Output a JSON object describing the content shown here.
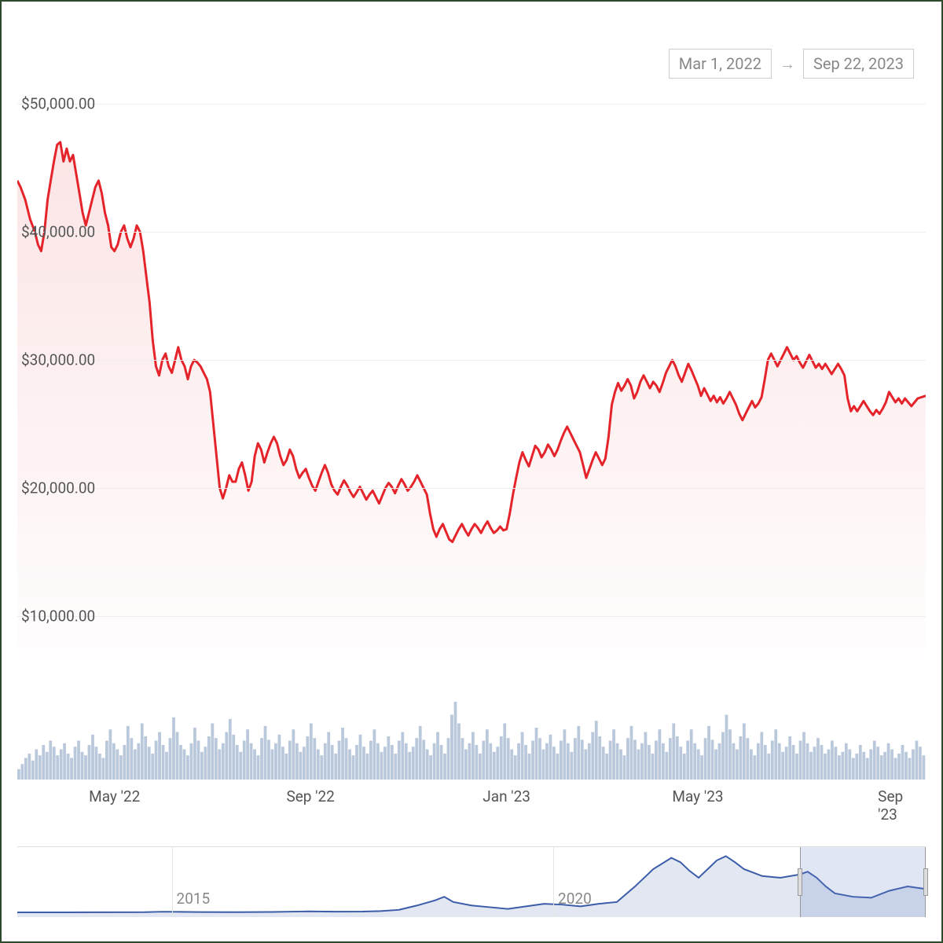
{
  "date_range": {
    "start": "Mar 1, 2022",
    "end": "Sep 22, 2023"
  },
  "main_chart": {
    "type": "area-line",
    "line_color": "#e4242a",
    "line_width": 3,
    "fill_color_top": "rgba(228,36,42,0.12)",
    "fill_color_bottom": "rgba(228,36,42,0.0)",
    "background_color": "#ffffff",
    "grid_color": "#eeeeee",
    "ylim": [
      4000,
      50000
    ],
    "y_ticks": [
      10000,
      20000,
      30000,
      40000,
      50000
    ],
    "y_tick_labels": [
      "$10,000.00",
      "$20,000.00",
      "$30,000.00",
      "$40,000.00",
      "$50,000.00"
    ],
    "label_fontsize": 19,
    "label_color": "#555555",
    "x_domain": [
      0,
      570
    ],
    "x_ticks": [
      61,
      184,
      307,
      427,
      550
    ],
    "x_tick_labels": [
      "May '22",
      "Sep '22",
      "Jan '23",
      "May '23",
      "Sep '23"
    ],
    "series": [
      [
        0,
        44000
      ],
      [
        2,
        43500
      ],
      [
        5,
        42500
      ],
      [
        8,
        41000
      ],
      [
        11,
        40000
      ],
      [
        13,
        39000
      ],
      [
        15,
        38500
      ],
      [
        17,
        40000
      ],
      [
        19,
        42500
      ],
      [
        21,
        44000
      ],
      [
        23,
        45500
      ],
      [
        25,
        46800
      ],
      [
        27,
        47000
      ],
      [
        29,
        45500
      ],
      [
        31,
        46500
      ],
      [
        33,
        45500
      ],
      [
        35,
        46000
      ],
      [
        37,
        44500
      ],
      [
        39,
        43000
      ],
      [
        41,
        41500
      ],
      [
        43,
        40500
      ],
      [
        45,
        41500
      ],
      [
        47,
        42500
      ],
      [
        49,
        43500
      ],
      [
        51,
        44000
      ],
      [
        53,
        43000
      ],
      [
        55,
        41500
      ],
      [
        57,
        40500
      ],
      [
        59,
        38800
      ],
      [
        61,
        38500
      ],
      [
        63,
        39000
      ],
      [
        65,
        40000
      ],
      [
        67,
        40500
      ],
      [
        69,
        39500
      ],
      [
        71,
        38800
      ],
      [
        73,
        39500
      ],
      [
        75,
        40500
      ],
      [
        77,
        40000
      ],
      [
        79,
        38500
      ],
      [
        81,
        36500
      ],
      [
        83,
        34500
      ],
      [
        85,
        31500
      ],
      [
        87,
        29500
      ],
      [
        89,
        28800
      ],
      [
        91,
        30000
      ],
      [
        93,
        30500
      ],
      [
        95,
        29500
      ],
      [
        97,
        29000
      ],
      [
        99,
        30000
      ],
      [
        101,
        31000
      ],
      [
        103,
        30000
      ],
      [
        105,
        29500
      ],
      [
        107,
        28500
      ],
      [
        109,
        29500
      ],
      [
        111,
        30000
      ],
      [
        113,
        29800
      ],
      [
        115,
        29500
      ],
      [
        117,
        29000
      ],
      [
        119,
        28500
      ],
      [
        121,
        27500
      ],
      [
        123,
        25000
      ],
      [
        125,
        22500
      ],
      [
        127,
        20000
      ],
      [
        129,
        19200
      ],
      [
        131,
        20000
      ],
      [
        133,
        21000
      ],
      [
        135,
        20500
      ],
      [
        137,
        20500
      ],
      [
        139,
        21500
      ],
      [
        141,
        22000
      ],
      [
        143,
        21000
      ],
      [
        145,
        19800
      ],
      [
        147,
        20500
      ],
      [
        149,
        22500
      ],
      [
        151,
        23500
      ],
      [
        153,
        23000
      ],
      [
        155,
        22000
      ],
      [
        157,
        22800
      ],
      [
        159,
        23500
      ],
      [
        161,
        24000
      ],
      [
        163,
        23500
      ],
      [
        165,
        22500
      ],
      [
        167,
        21800
      ],
      [
        169,
        22200
      ],
      [
        171,
        23000
      ],
      [
        173,
        22500
      ],
      [
        175,
        21500
      ],
      [
        177,
        20800
      ],
      [
        179,
        21200
      ],
      [
        181,
        21500
      ],
      [
        183,
        20800
      ],
      [
        185,
        20200
      ],
      [
        187,
        19800
      ],
      [
        189,
        20500
      ],
      [
        191,
        21200
      ],
      [
        193,
        21800
      ],
      [
        195,
        21200
      ],
      [
        197,
        20300
      ],
      [
        199,
        19800
      ],
      [
        201,
        19500
      ],
      [
        203,
        20100
      ],
      [
        205,
        20600
      ],
      [
        207,
        20200
      ],
      [
        209,
        19700
      ],
      [
        211,
        19300
      ],
      [
        213,
        19700
      ],
      [
        215,
        20100
      ],
      [
        217,
        19600
      ],
      [
        219,
        19100
      ],
      [
        221,
        19500
      ],
      [
        223,
        19800
      ],
      [
        225,
        19300
      ],
      [
        227,
        18800
      ],
      [
        229,
        19400
      ],
      [
        231,
        20000
      ],
      [
        233,
        20400
      ],
      [
        235,
        20100
      ],
      [
        237,
        19600
      ],
      [
        239,
        20200
      ],
      [
        241,
        20700
      ],
      [
        243,
        20300
      ],
      [
        245,
        19800
      ],
      [
        247,
        20100
      ],
      [
        249,
        20500
      ],
      [
        251,
        21000
      ],
      [
        253,
        20500
      ],
      [
        255,
        20000
      ],
      [
        257,
        19500
      ],
      [
        259,
        18000
      ],
      [
        261,
        16800
      ],
      [
        263,
        16200
      ],
      [
        265,
        16800
      ],
      [
        267,
        17200
      ],
      [
        269,
        16600
      ],
      [
        271,
        16000
      ],
      [
        273,
        15800
      ],
      [
        275,
        16300
      ],
      [
        277,
        16800
      ],
      [
        279,
        17200
      ],
      [
        281,
        16700
      ],
      [
        283,
        16300
      ],
      [
        285,
        16800
      ],
      [
        287,
        17200
      ],
      [
        289,
        16900
      ],
      [
        291,
        16500
      ],
      [
        293,
        17000
      ],
      [
        295,
        17400
      ],
      [
        297,
        16900
      ],
      [
        299,
        16500
      ],
      [
        301,
        16700
      ],
      [
        303,
        17000
      ],
      [
        305,
        16700
      ],
      [
        307,
        16800
      ],
      [
        309,
        18000
      ],
      [
        311,
        19500
      ],
      [
        313,
        20800
      ],
      [
        315,
        22000
      ],
      [
        317,
        22800
      ],
      [
        319,
        22200
      ],
      [
        321,
        21700
      ],
      [
        323,
        22500
      ],
      [
        325,
        23300
      ],
      [
        327,
        23000
      ],
      [
        329,
        22400
      ],
      [
        331,
        22800
      ],
      [
        333,
        23400
      ],
      [
        335,
        23000
      ],
      [
        337,
        22500
      ],
      [
        339,
        23000
      ],
      [
        341,
        23700
      ],
      [
        343,
        24300
      ],
      [
        345,
        24800
      ],
      [
        347,
        24300
      ],
      [
        349,
        23800
      ],
      [
        351,
        23300
      ],
      [
        353,
        22800
      ],
      [
        355,
        21800
      ],
      [
        357,
        20800
      ],
      [
        359,
        21500
      ],
      [
        361,
        22200
      ],
      [
        363,
        22800
      ],
      [
        365,
        22300
      ],
      [
        367,
        21800
      ],
      [
        369,
        22300
      ],
      [
        371,
        24000
      ],
      [
        373,
        26500
      ],
      [
        375,
        27500
      ],
      [
        377,
        28200
      ],
      [
        379,
        27600
      ],
      [
        381,
        28000
      ],
      [
        383,
        28500
      ],
      [
        385,
        28000
      ],
      [
        387,
        27000
      ],
      [
        389,
        27500
      ],
      [
        391,
        28300
      ],
      [
        393,
        28800
      ],
      [
        395,
        28300
      ],
      [
        397,
        27800
      ],
      [
        399,
        28300
      ],
      [
        401,
        28000
      ],
      [
        403,
        27500
      ],
      [
        405,
        28200
      ],
      [
        407,
        29000
      ],
      [
        409,
        29500
      ],
      [
        411,
        30000
      ],
      [
        413,
        29500
      ],
      [
        415,
        28800
      ],
      [
        417,
        28300
      ],
      [
        419,
        29000
      ],
      [
        421,
        29700
      ],
      [
        423,
        29200
      ],
      [
        425,
        28600
      ],
      [
        427,
        28000
      ],
      [
        429,
        27200
      ],
      [
        431,
        27800
      ],
      [
        433,
        27300
      ],
      [
        435,
        26800
      ],
      [
        437,
        27200
      ],
      [
        439,
        26700
      ],
      [
        441,
        27100
      ],
      [
        443,
        26600
      ],
      [
        445,
        27000
      ],
      [
        447,
        27500
      ],
      [
        449,
        27000
      ],
      [
        451,
        26500
      ],
      [
        453,
        25800
      ],
      [
        455,
        25300
      ],
      [
        457,
        25800
      ],
      [
        459,
        26300
      ],
      [
        461,
        26800
      ],
      [
        463,
        26300
      ],
      [
        465,
        26600
      ],
      [
        467,
        27100
      ],
      [
        469,
        28500
      ],
      [
        471,
        30000
      ],
      [
        473,
        30500
      ],
      [
        475,
        30000
      ],
      [
        477,
        29500
      ],
      [
        479,
        30000
      ],
      [
        481,
        30500
      ],
      [
        483,
        31000
      ],
      [
        485,
        30500
      ],
      [
        487,
        30000
      ],
      [
        489,
        30300
      ],
      [
        491,
        29800
      ],
      [
        493,
        29400
      ],
      [
        495,
        29900
      ],
      [
        497,
        30400
      ],
      [
        499,
        29900
      ],
      [
        501,
        29400
      ],
      [
        503,
        29700
      ],
      [
        505,
        29300
      ],
      [
        507,
        29700
      ],
      [
        509,
        29300
      ],
      [
        511,
        28900
      ],
      [
        513,
        29300
      ],
      [
        515,
        29700
      ],
      [
        517,
        29300
      ],
      [
        519,
        28800
      ],
      [
        521,
        27000
      ],
      [
        523,
        26000
      ],
      [
        525,
        26400
      ],
      [
        527,
        26000
      ],
      [
        529,
        26400
      ],
      [
        531,
        26800
      ],
      [
        533,
        26400
      ],
      [
        535,
        26000
      ],
      [
        537,
        25700
      ],
      [
        539,
        26100
      ],
      [
        541,
        25800
      ],
      [
        543,
        26200
      ],
      [
        545,
        26700
      ],
      [
        547,
        27500
      ],
      [
        549,
        27100
      ],
      [
        551,
        26700
      ],
      [
        553,
        27000
      ],
      [
        555,
        26600
      ],
      [
        557,
        27000
      ],
      [
        559,
        26700
      ],
      [
        561,
        26400
      ],
      [
        563,
        26700
      ],
      [
        565,
        27000
      ],
      [
        570,
        27200
      ]
    ]
  },
  "volume_chart": {
    "type": "bar",
    "bar_color": "rgba(130,155,190,0.55)",
    "max_value": 100,
    "x_domain": [
      0,
      570
    ],
    "series": [
      12,
      18,
      25,
      30,
      22,
      35,
      28,
      40,
      32,
      45,
      38,
      28,
      35,
      42,
      30,
      25,
      38,
      45,
      32,
      28,
      40,
      52,
      38,
      30,
      25,
      45,
      58,
      42,
      35,
      28,
      40,
      62,
      48,
      35,
      42,
      65,
      50,
      38,
      30,
      45,
      55,
      40,
      32,
      48,
      72,
      55,
      40,
      35,
      28,
      42,
      60,
      45,
      32,
      38,
      50,
      65,
      48,
      35,
      42,
      55,
      70,
      52,
      40,
      32,
      45,
      58,
      42,
      35,
      28,
      48,
      62,
      46,
      35,
      42,
      52,
      38,
      30,
      45,
      58,
      42,
      32,
      38,
      50,
      65,
      48,
      35,
      28,
      42,
      55,
      40,
      30,
      45,
      60,
      48,
      35,
      28,
      40,
      52,
      38,
      30,
      45,
      58,
      42,
      32,
      38,
      50,
      40,
      30,
      45,
      55,
      42,
      32,
      38,
      48,
      62,
      46,
      35,
      28,
      42,
      55,
      40,
      30,
      48,
      75,
      90,
      65,
      48,
      35,
      42,
      55,
      40,
      30,
      45,
      58,
      42,
      32,
      38,
      50,
      65,
      48,
      35,
      28,
      42,
      55,
      40,
      30,
      45,
      60,
      48,
      35,
      42,
      52,
      38,
      30,
      45,
      58,
      42,
      32,
      48,
      62,
      46,
      35,
      42,
      55,
      68,
      50,
      38,
      30,
      45,
      58,
      42,
      35,
      28,
      48,
      62,
      46,
      35,
      42,
      55,
      40,
      30,
      45,
      58,
      42,
      32,
      48,
      65,
      50,
      38,
      30,
      45,
      58,
      42,
      35,
      28,
      48,
      62,
      46,
      35,
      42,
      55,
      75,
      58,
      42,
      35,
      50,
      65,
      48,
      35,
      28,
      42,
      55,
      40,
      30,
      45,
      58,
      42,
      32,
      38,
      50,
      40,
      30,
      45,
      55,
      42,
      32,
      38,
      48,
      40,
      30,
      35,
      45,
      38,
      28,
      32,
      42,
      35,
      25,
      30,
      40,
      32,
      25,
      35,
      45,
      38,
      28,
      32,
      42,
      35,
      25,
      30,
      40,
      32,
      25,
      35,
      45,
      38,
      28
    ]
  },
  "navigator": {
    "type": "area-line",
    "line_color": "#3b5ca8",
    "line_width": 2,
    "fill_color": "rgba(60,92,168,0.15)",
    "selection_color": "rgba(100,130,200,0.2)",
    "x_domain": [
      0,
      1000
    ],
    "ylim": [
      0,
      70000
    ],
    "x_ticks": [
      170,
      590
    ],
    "x_tick_labels": [
      "2015",
      "2020"
    ],
    "selection": [
      862,
      1000
    ],
    "series": [
      [
        0,
        100
      ],
      [
        50,
        100
      ],
      [
        100,
        150
      ],
      [
        140,
        300
      ],
      [
        160,
        800
      ],
      [
        180,
        600
      ],
      [
        200,
        400
      ],
      [
        240,
        300
      ],
      [
        280,
        500
      ],
      [
        320,
        1200
      ],
      [
        350,
        900
      ],
      [
        380,
        1000
      ],
      [
        400,
        1500
      ],
      [
        420,
        3000
      ],
      [
        440,
        8000
      ],
      [
        460,
        14000
      ],
      [
        470,
        18000
      ],
      [
        480,
        12000
      ],
      [
        500,
        8000
      ],
      [
        520,
        6000
      ],
      [
        540,
        4000
      ],
      [
        560,
        7000
      ],
      [
        580,
        10000
      ],
      [
        600,
        9000
      ],
      [
        620,
        7000
      ],
      [
        640,
        10000
      ],
      [
        660,
        12000
      ],
      [
        680,
        30000
      ],
      [
        700,
        50000
      ],
      [
        720,
        63000
      ],
      [
        730,
        58000
      ],
      [
        740,
        48000
      ],
      [
        750,
        40000
      ],
      [
        760,
        50000
      ],
      [
        770,
        60000
      ],
      [
        780,
        65000
      ],
      [
        790,
        58000
      ],
      [
        800,
        50000
      ],
      [
        820,
        42000
      ],
      [
        840,
        40000
      ],
      [
        862,
        44000
      ],
      [
        870,
        47000
      ],
      [
        880,
        40000
      ],
      [
        890,
        30000
      ],
      [
        900,
        22000
      ],
      [
        920,
        18000
      ],
      [
        940,
        17000
      ],
      [
        960,
        25000
      ],
      [
        980,
        30000
      ],
      [
        1000,
        27000
      ]
    ]
  }
}
